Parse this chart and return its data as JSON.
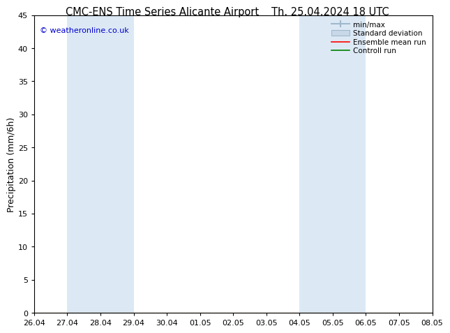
{
  "title_left": "CMC-ENS Time Series Alicante Airport",
  "title_right": "Th. 25.04.2024 18 UTC",
  "ylabel": "Precipitation (mm/6h)",
  "copyright": "© weatheronline.co.uk",
  "xlim": [
    0,
    12
  ],
  "ylim": [
    0,
    45
  ],
  "yticks": [
    0,
    5,
    10,
    15,
    20,
    25,
    30,
    35,
    40,
    45
  ],
  "xtick_labels": [
    "26.04",
    "27.04",
    "28.04",
    "29.04",
    "30.04",
    "01.05",
    "02.05",
    "03.05",
    "04.05",
    "05.05",
    "06.05",
    "07.05",
    "08.05"
  ],
  "blue_bands": [
    [
      1,
      2
    ],
    [
      2,
      3
    ],
    [
      8,
      9
    ],
    [
      9,
      10
    ],
    [
      12,
      12.5
    ]
  ],
  "bg_color": "#ffffff",
  "band_color": "#dce9f5",
  "ensemble_mean_color": "#ff0000",
  "control_run_color": "#008000",
  "minmax_color": "#a0b8cc",
  "stddev_color": "#c8d8e8",
  "legend_labels": [
    "min/max",
    "Standard deviation",
    "Ensemble mean run",
    "Controll run"
  ],
  "title_fontsize": 10.5,
  "tick_fontsize": 8,
  "ylabel_fontsize": 9,
  "copyright_color": "#0000cc"
}
